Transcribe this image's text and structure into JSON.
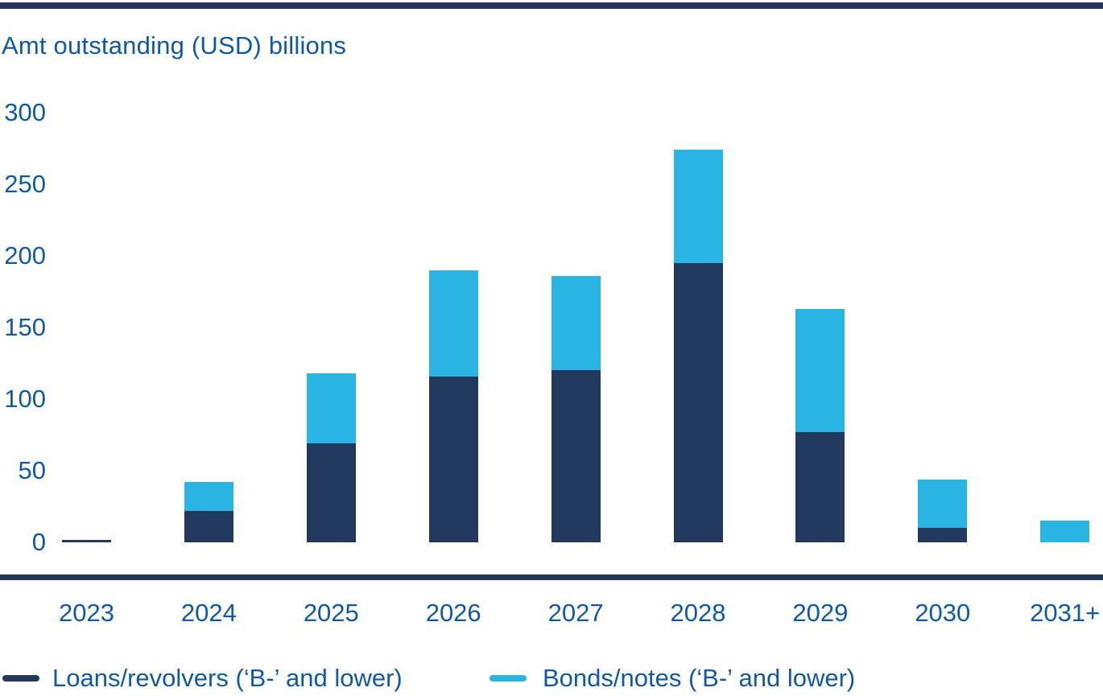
{
  "colors": {
    "navy": "#22395e",
    "cyan": "#29b4e3",
    "text_blue": "#0f59a7",
    "axis_line": "#22395e"
  },
  "chart_data": {
    "type": "bar",
    "stacked": true,
    "title": "Amt outstanding (USD) billions",
    "categories": [
      "2023",
      "2024",
      "2025",
      "2026",
      "2027",
      "2028",
      "2029",
      "2030",
      "2031+"
    ],
    "series": [
      {
        "name": "Loans/revolvers (‘B-’ and lower)",
        "color": "#22395e",
        "values": [
          0,
          22,
          69,
          116,
          120,
          195,
          77,
          10,
          0
        ]
      },
      {
        "name": "Bonds/notes (‘B-’ and lower)",
        "color": "#29b4e3",
        "values": [
          0,
          20,
          49,
          74,
          66,
          79,
          86,
          34,
          15
        ]
      }
    ],
    "y_ticks": [
      0,
      50,
      100,
      150,
      200,
      250,
      300
    ],
    "ylim": [
      0,
      300
    ],
    "xlabel": "",
    "ylabel": "Amt outstanding (USD) billions",
    "grid": false,
    "legend_position": "bottom",
    "note_2023": "2023 shown as a flat dash at zero"
  }
}
